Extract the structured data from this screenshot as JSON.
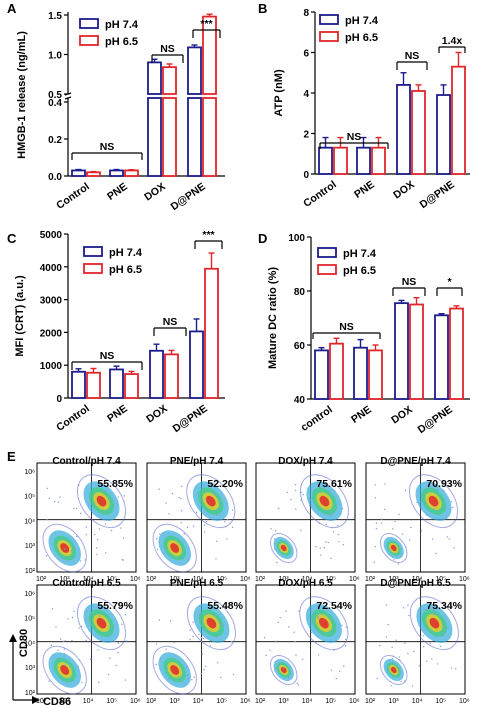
{
  "colors": {
    "ph74": "#1c1c8c",
    "ph65": "#e0262b",
    "axis": "#000000"
  },
  "chart_data": [
    {
      "panel": "A",
      "type": "bar",
      "ylabel": "HMGB-1 release (ng/mL)",
      "broken_axis": true,
      "ylim_lower": [
        0,
        0.4
      ],
      "ylim_upper": [
        0.5,
        1.5
      ],
      "yticks_lower": [
        "0.0",
        "0.2",
        "0.4"
      ],
      "yticks_upper": [
        "0.5",
        "1.0",
        "1.5"
      ],
      "categories": [
        "Control",
        "PNE",
        "DOX",
        "D@PNE"
      ],
      "series": [
        {
          "name": "pH 7.4",
          "values": [
            0.03,
            0.03,
            0.9,
            1.09
          ],
          "errors": [
            0.005,
            0.005,
            0.04,
            0.03
          ]
        },
        {
          "name": "pH 6.5",
          "values": [
            0.02,
            0.03,
            0.84,
            1.48
          ],
          "errors": [
            0.004,
            0.004,
            0.04,
            0.03
          ]
        }
      ],
      "annotations": [
        "NS",
        "NS",
        "***"
      ]
    },
    {
      "panel": "B",
      "type": "bar",
      "ylabel": "ATP (nM)",
      "ylim": [
        0,
        8
      ],
      "yticks": [
        "0",
        "2",
        "4",
        "6",
        "8"
      ],
      "categories": [
        "Control",
        "PNE",
        "DOX",
        "D@PNE"
      ],
      "series": [
        {
          "name": "pH 7.4",
          "values": [
            1.3,
            1.3,
            4.4,
            3.9
          ],
          "errors": [
            0.5,
            0.5,
            0.6,
            0.5
          ]
        },
        {
          "name": "pH 6.5",
          "values": [
            1.3,
            1.3,
            4.1,
            5.3
          ],
          "errors": [
            0.5,
            0.5,
            0.3,
            0.7
          ]
        }
      ],
      "annotations": [
        "NS",
        "NS",
        "1.4x"
      ]
    },
    {
      "panel": "C",
      "type": "bar",
      "ylabel": "MFI (CRT) (a.u.)",
      "ylim": [
        0,
        5000
      ],
      "yticks": [
        "0",
        "1000",
        "2000",
        "3000",
        "4000",
        "5000"
      ],
      "categories": [
        "Control",
        "PNE",
        "DOX",
        "D@PNE"
      ],
      "series": [
        {
          "name": "pH 7.4",
          "values": [
            800,
            870,
            1440,
            2030
          ],
          "errors": [
            90,
            100,
            200,
            380
          ]
        },
        {
          "name": "pH 6.5",
          "values": [
            770,
            730,
            1330,
            3940
          ],
          "errors": [
            130,
            80,
            120,
            480
          ]
        }
      ],
      "annotations": [
        "NS",
        "NS",
        "***"
      ]
    },
    {
      "panel": "D",
      "type": "bar",
      "ylabel": "Mature DC ratio (%)",
      "ylim": [
        40,
        100
      ],
      "yticks": [
        "40",
        "60",
        "80",
        "100"
      ],
      "categories": [
        "control",
        "PNE",
        "DOX",
        "D@PNE"
      ],
      "series": [
        {
          "name": "pH 7.4",
          "values": [
            58,
            59,
            75.5,
            71
          ],
          "errors": [
            1.0,
            3.0,
            1.0,
            0.6
          ]
        },
        {
          "name": "pH 6.5",
          "values": [
            60.5,
            58,
            75,
            73.5
          ],
          "errors": [
            2.0,
            2.0,
            2.5,
            1.0
          ]
        }
      ],
      "annotations": [
        "NS",
        "NS",
        "*"
      ]
    },
    {
      "panel": "E",
      "type": "scatter",
      "xlabel": "CD86",
      "ylabel": "CD80",
      "tick_labels": [
        "10²",
        "10³",
        "10⁴",
        "10⁵",
        "10⁶"
      ],
      "plots": [
        {
          "title": "Control/pH 7.4",
          "percent": "55.85%"
        },
        {
          "title": "PNE/pH 7.4",
          "percent": "52.20%"
        },
        {
          "title": "DOX/pH 7.4",
          "percent": "75.61%"
        },
        {
          "title": "D@PNE/pH 7.4",
          "percent": "70.93%"
        },
        {
          "title": "Control/pH 6.5",
          "percent": "55.79%"
        },
        {
          "title": "PNE/pH 6.5",
          "percent": "55.48%"
        },
        {
          "title": "DOX/pH 6.5",
          "percent": "72.54%"
        },
        {
          "title": "D@PNE/pH 6.5",
          "percent": "75.34%"
        }
      ]
    }
  ]
}
